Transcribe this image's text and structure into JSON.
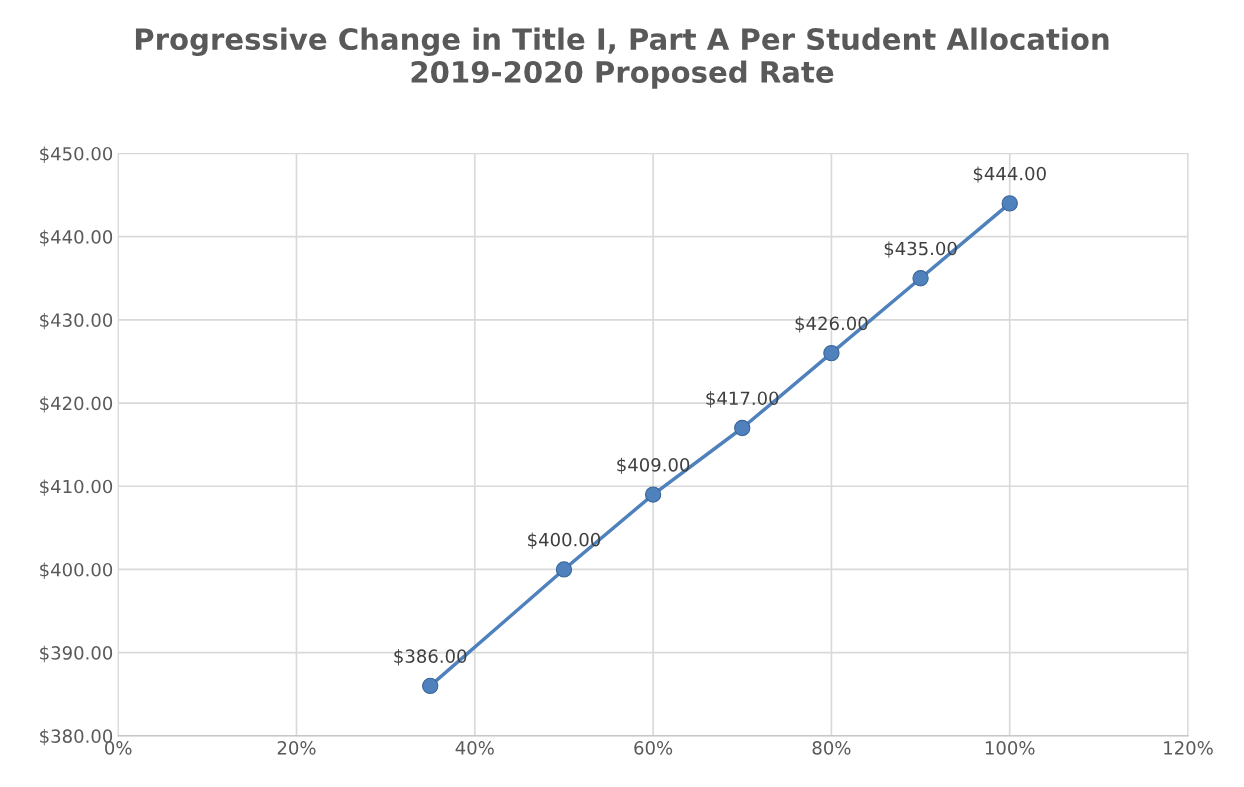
{
  "chart_data": {
    "type": "line",
    "title": "Progressive Change in Title I, Part A Per Student Allocation\n2019-2020 Proposed Rate",
    "x": [
      35,
      50,
      60,
      70,
      80,
      90,
      100
    ],
    "series": [
      {
        "color": "#4f81bd",
        "values": [
          386,
          400,
          409,
          417,
          426,
          435,
          444
        ],
        "value_labels": [
          "$386.00",
          "$400.00",
          "$409.00",
          "$417.00",
          "$426.00",
          "$435.00",
          "$444.00"
        ]
      }
    ],
    "xlim": [
      0,
      120
    ],
    "xticks": [
      {
        "value": 0,
        "label": "0%"
      },
      {
        "value": 20,
        "label": "20%"
      },
      {
        "value": 40,
        "label": "40%"
      },
      {
        "value": 60,
        "label": "60%"
      },
      {
        "value": 80,
        "label": "80%"
      },
      {
        "value": 100,
        "label": "100%"
      },
      {
        "value": 120,
        "label": "120%"
      }
    ],
    "ylim": [
      380,
      450
    ],
    "yticks": [
      {
        "value": 380,
        "label": "$380.00"
      },
      {
        "value": 390,
        "label": "$390.00"
      },
      {
        "value": 400,
        "label": "$400.00"
      },
      {
        "value": 410,
        "label": "$410.00"
      },
      {
        "value": 420,
        "label": "$420.00"
      },
      {
        "value": 430,
        "label": "$430.00"
      },
      {
        "value": 440,
        "label": "$440.00"
      },
      {
        "value": 450,
        "label": "$450.00"
      }
    ],
    "grid": true,
    "marker": "circle",
    "line_style": "solid",
    "legend": false
  }
}
